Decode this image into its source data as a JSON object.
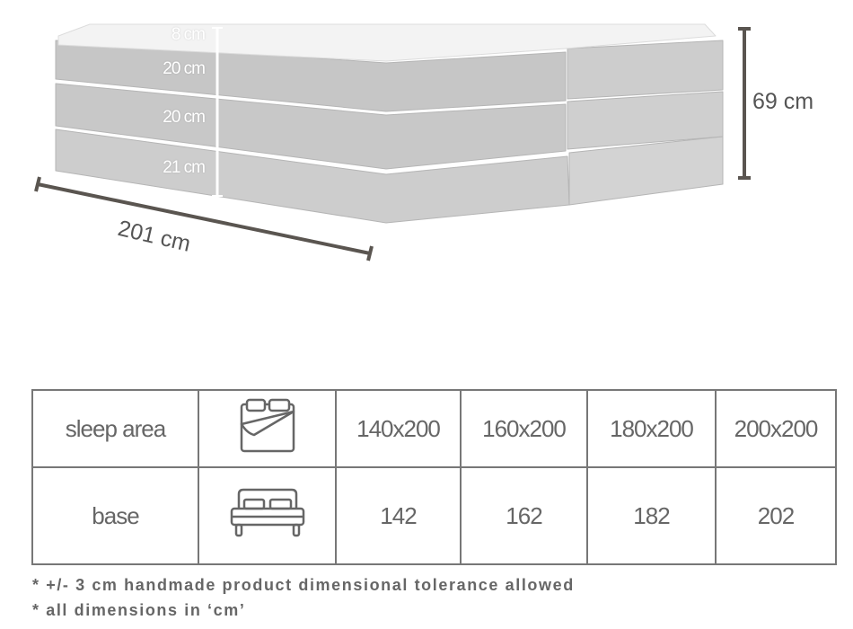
{
  "diagram": {
    "dimensions": {
      "topper_height": "8 cm",
      "mattress_upper_height": "20 cm",
      "mattress_lower_height": "20 cm",
      "base_height": "21 cm",
      "total_height": "69 cm",
      "length": "201 cm"
    },
    "colors": {
      "fabric": "#c9c9c9",
      "topper": "#f3f3f3",
      "dimension_line": "#5a5550"
    }
  },
  "table": {
    "rows": [
      {
        "label": "sleep area",
        "icon": "bed-top-view-icon",
        "values": [
          "140x200",
          "160x200",
          "180x200",
          "200x200"
        ]
      },
      {
        "label": "base",
        "icon": "bed-front-view-icon",
        "values": [
          "142",
          "162",
          "182",
          "202"
        ]
      }
    ]
  },
  "notes": [
    "* +/- 3 cm handmade product dimensional tolerance allowed",
    "* all dimensions in ‘cm’"
  ]
}
